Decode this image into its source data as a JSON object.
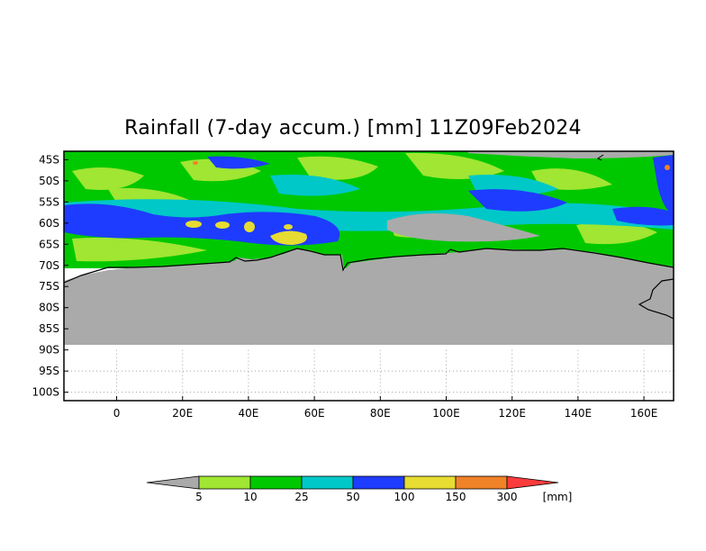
{
  "title": "Rainfall (7-day accum.) [mm] 11Z09Feb2024",
  "map": {
    "lat_labels": [
      "45S",
      "50S",
      "55S",
      "60S",
      "65S",
      "70S",
      "75S",
      "80S",
      "85S",
      "90S",
      "95S",
      "100S"
    ],
    "lon_labels": [
      "0",
      "20E",
      "40E",
      "60E",
      "80E",
      "100E",
      "120E",
      "140E",
      "160E"
    ],
    "lat_range": [
      -102,
      -43
    ],
    "lon_range": [
      -16,
      169
    ],
    "grid_lines": "dotted",
    "projection": "lat-lon"
  },
  "legend": {
    "levels": [
      "5",
      "10",
      "25",
      "50",
      "100",
      "150",
      "300"
    ],
    "unit": "[mm]",
    "colors": {
      "below": "#aaaaaa",
      "bins": [
        "#a0e632",
        "#00c800",
        "#00c8c8",
        "#1e3cff",
        "#e6dc32",
        "#f08228"
      ],
      "above": "#fa3c3c"
    }
  },
  "colors": {
    "land": "#aaaaaa",
    "coast": "#000000",
    "grid": "#a0a0a0"
  }
}
